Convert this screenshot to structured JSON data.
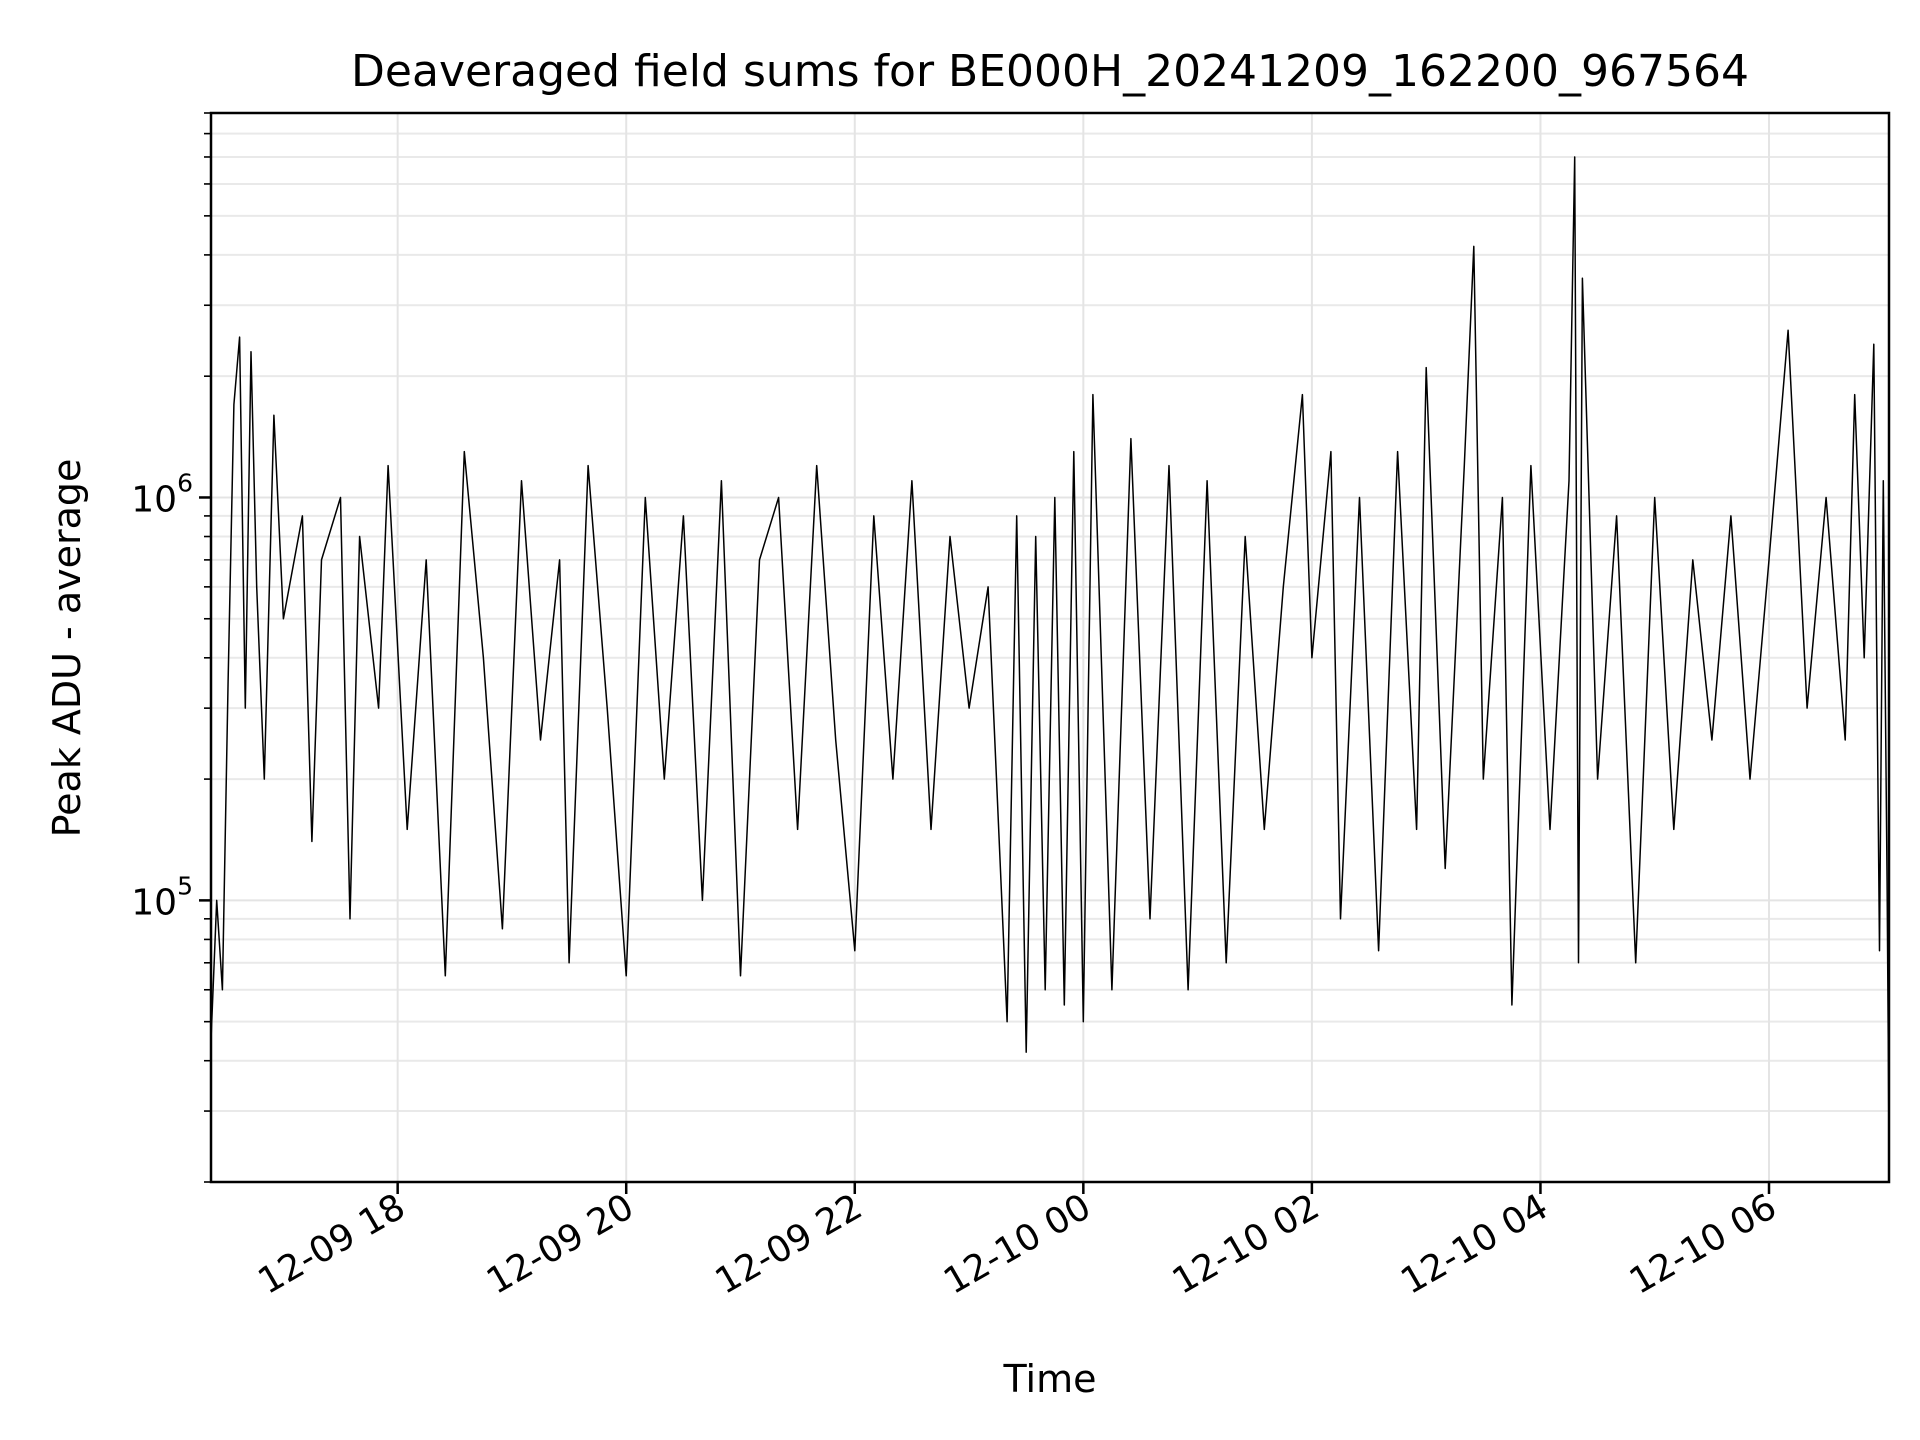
{
  "chart_data": {
    "type": "line",
    "title": "Deaveraged field sums for BE000H_20241209_162200_967564",
    "xlabel": "Time",
    "ylabel": "Peak ADU - average",
    "xlim": [
      "2024-12-09 16:22",
      "2024-12-10 07:03"
    ],
    "ylim": [
      20000,
      9000000
    ],
    "yscale": "log",
    "grid": true,
    "line_color": "#000000",
    "x_ticks": [
      {
        "value": "2024-12-09 18:00",
        "label": "12-09 18"
      },
      {
        "value": "2024-12-09 20:00",
        "label": "12-09 20"
      },
      {
        "value": "2024-12-09 22:00",
        "label": "12-09 22"
      },
      {
        "value": "2024-12-10 00:00",
        "label": "12-10 00"
      },
      {
        "value": "2024-12-10 02:00",
        "label": "12-10 02"
      },
      {
        "value": "2024-12-10 04:00",
        "label": "12-10 04"
      },
      {
        "value": "2024-12-10 06:00",
        "label": "12-10 06"
      }
    ],
    "y_ticks": [
      {
        "value": 100000,
        "base": "10",
        "exp": "5"
      },
      {
        "value": 1000000,
        "base": "10",
        "exp": "6"
      }
    ],
    "series": [
      {
        "points": [
          [
            "2024-12-09 16:22",
            45000
          ],
          [
            "2024-12-09 16:25",
            100000
          ],
          [
            "2024-12-09 16:28",
            60000
          ],
          [
            "2024-12-09 16:31",
            350000
          ],
          [
            "2024-12-09 16:34",
            1700000
          ],
          [
            "2024-12-09 16:37",
            2500000
          ],
          [
            "2024-12-09 16:40",
            300000
          ],
          [
            "2024-12-09 16:43",
            2300000
          ],
          [
            "2024-12-09 16:46",
            600000
          ],
          [
            "2024-12-09 16:50",
            200000
          ],
          [
            "2024-12-09 16:55",
            1600000
          ],
          [
            "2024-12-09 17:00",
            500000
          ],
          [
            "2024-12-09 17:10",
            900000
          ],
          [
            "2024-12-09 17:15",
            140000
          ],
          [
            "2024-12-09 17:20",
            700000
          ],
          [
            "2024-12-09 17:30",
            1000000
          ],
          [
            "2024-12-09 17:35",
            90000
          ],
          [
            "2024-12-09 17:40",
            800000
          ],
          [
            "2024-12-09 17:50",
            300000
          ],
          [
            "2024-12-09 17:55",
            1200000
          ],
          [
            "2024-12-09 18:05",
            150000
          ],
          [
            "2024-12-09 18:15",
            700000
          ],
          [
            "2024-12-09 18:25",
            65000
          ],
          [
            "2024-12-09 18:35",
            1300000
          ],
          [
            "2024-12-09 18:45",
            400000
          ],
          [
            "2024-12-09 18:55",
            85000
          ],
          [
            "2024-12-09 19:05",
            1100000
          ],
          [
            "2024-12-09 19:15",
            250000
          ],
          [
            "2024-12-09 19:25",
            700000
          ],
          [
            "2024-12-09 19:30",
            70000
          ],
          [
            "2024-12-09 19:40",
            1200000
          ],
          [
            "2024-12-09 19:50",
            300000
          ],
          [
            "2024-12-09 20:00",
            65000
          ],
          [
            "2024-12-09 20:10",
            1000000
          ],
          [
            "2024-12-09 20:20",
            200000
          ],
          [
            "2024-12-09 20:30",
            900000
          ],
          [
            "2024-12-09 20:40",
            100000
          ],
          [
            "2024-12-09 20:50",
            1100000
          ],
          [
            "2024-12-09 21:00",
            65000
          ],
          [
            "2024-12-09 21:10",
            700000
          ],
          [
            "2024-12-09 21:20",
            1000000
          ],
          [
            "2024-12-09 21:30",
            150000
          ],
          [
            "2024-12-09 21:40",
            1200000
          ],
          [
            "2024-12-09 21:50",
            250000
          ],
          [
            "2024-12-09 22:00",
            75000
          ],
          [
            "2024-12-09 22:10",
            900000
          ],
          [
            "2024-12-09 22:20",
            200000
          ],
          [
            "2024-12-09 22:30",
            1100000
          ],
          [
            "2024-12-09 22:40",
            150000
          ],
          [
            "2024-12-09 22:50",
            800000
          ],
          [
            "2024-12-09 23:00",
            300000
          ],
          [
            "2024-12-09 23:10",
            600000
          ],
          [
            "2024-12-09 23:20",
            50000
          ],
          [
            "2024-12-09 23:25",
            900000
          ],
          [
            "2024-12-09 23:30",
            42000
          ],
          [
            "2024-12-09 23:35",
            800000
          ],
          [
            "2024-12-09 23:40",
            60000
          ],
          [
            "2024-12-09 23:45",
            1000000
          ],
          [
            "2024-12-09 23:50",
            55000
          ],
          [
            "2024-12-09 23:55",
            1300000
          ],
          [
            "2024-12-10 00:00",
            50000
          ],
          [
            "2024-12-10 00:05",
            1800000
          ],
          [
            "2024-12-10 00:15",
            60000
          ],
          [
            "2024-12-10 00:25",
            1400000
          ],
          [
            "2024-12-10 00:35",
            90000
          ],
          [
            "2024-12-10 00:45",
            1200000
          ],
          [
            "2024-12-10 00:55",
            60000
          ],
          [
            "2024-12-10 01:05",
            1100000
          ],
          [
            "2024-12-10 01:15",
            70000
          ],
          [
            "2024-12-10 01:25",
            800000
          ],
          [
            "2024-12-10 01:35",
            150000
          ],
          [
            "2024-12-10 01:45",
            600000
          ],
          [
            "2024-12-10 01:55",
            1800000
          ],
          [
            "2024-12-10 02:00",
            400000
          ],
          [
            "2024-12-10 02:10",
            1300000
          ],
          [
            "2024-12-10 02:15",
            90000
          ],
          [
            "2024-12-10 02:25",
            1000000
          ],
          [
            "2024-12-10 02:35",
            75000
          ],
          [
            "2024-12-10 02:45",
            1300000
          ],
          [
            "2024-12-10 02:55",
            150000
          ],
          [
            "2024-12-10 03:00",
            2100000
          ],
          [
            "2024-12-10 03:10",
            120000
          ],
          [
            "2024-12-10 03:20",
            1200000
          ],
          [
            "2024-12-10 03:25",
            4200000
          ],
          [
            "2024-12-10 03:30",
            200000
          ],
          [
            "2024-12-10 03:40",
            1000000
          ],
          [
            "2024-12-10 03:45",
            55000
          ],
          [
            "2024-12-10 03:55",
            1200000
          ],
          [
            "2024-12-10 04:05",
            150000
          ],
          [
            "2024-12-10 04:15",
            1100000
          ],
          [
            "2024-12-10 04:18",
            7000000
          ],
          [
            "2024-12-10 04:20",
            70000
          ],
          [
            "2024-12-10 04:22",
            3500000
          ],
          [
            "2024-12-10 04:30",
            200000
          ],
          [
            "2024-12-10 04:40",
            900000
          ],
          [
            "2024-12-10 04:50",
            70000
          ],
          [
            "2024-12-10 05:00",
            1000000
          ],
          [
            "2024-12-10 05:10",
            150000
          ],
          [
            "2024-12-10 05:20",
            700000
          ],
          [
            "2024-12-10 05:30",
            250000
          ],
          [
            "2024-12-10 05:40",
            900000
          ],
          [
            "2024-12-10 05:50",
            200000
          ],
          [
            "2024-12-10 06:00",
            700000
          ],
          [
            "2024-12-10 06:10",
            2600000
          ],
          [
            "2024-12-10 06:20",
            300000
          ],
          [
            "2024-12-10 06:30",
            1000000
          ],
          [
            "2024-12-10 06:40",
            250000
          ],
          [
            "2024-12-10 06:45",
            1800000
          ],
          [
            "2024-12-10 06:50",
            400000
          ],
          [
            "2024-12-10 06:55",
            2400000
          ],
          [
            "2024-12-10 06:58",
            75000
          ],
          [
            "2024-12-10 07:00",
            1100000
          ],
          [
            "2024-12-10 07:02",
            110000
          ],
          [
            "2024-12-10 07:03",
            25000
          ]
        ]
      }
    ]
  }
}
